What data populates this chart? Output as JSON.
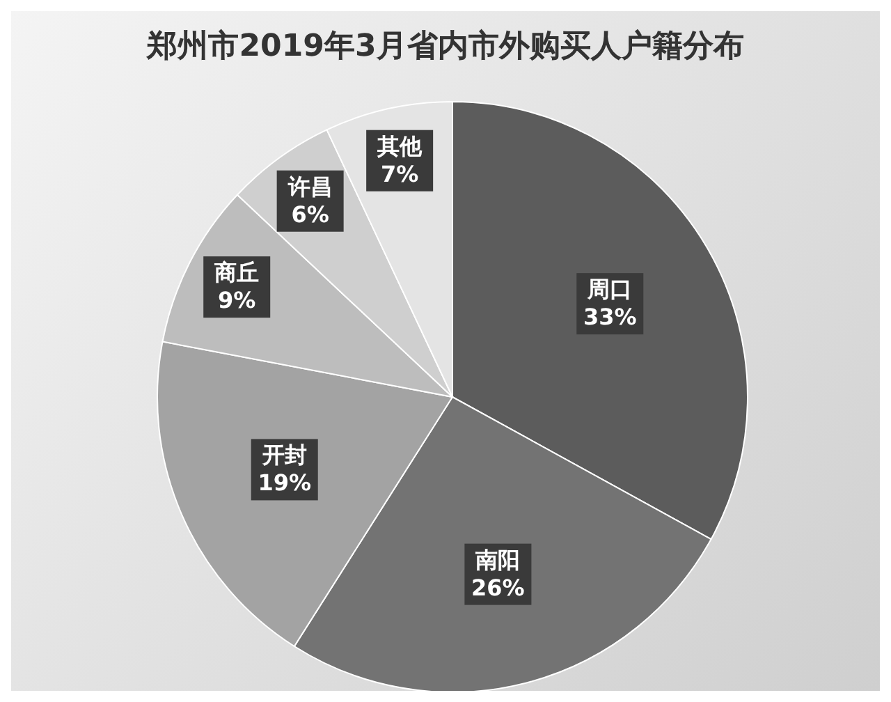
{
  "chart_data": {
    "type": "pie",
    "title": "郑州市2019年3月省内市外购买人户籍分布",
    "categories": [
      "周口",
      "南阳",
      "开封",
      "商丘",
      "许昌",
      "其他"
    ],
    "values": [
      33,
      26,
      19,
      9,
      6,
      7
    ],
    "colors": [
      "#5c5c5c",
      "#737373",
      "#a3a3a3",
      "#bdbdbd",
      "#cfcfcf",
      "#e4e4e4"
    ],
    "value_labels": [
      "33%",
      "26%",
      "19%",
      "9%",
      "6%",
      "7%"
    ],
    "legend": false
  }
}
